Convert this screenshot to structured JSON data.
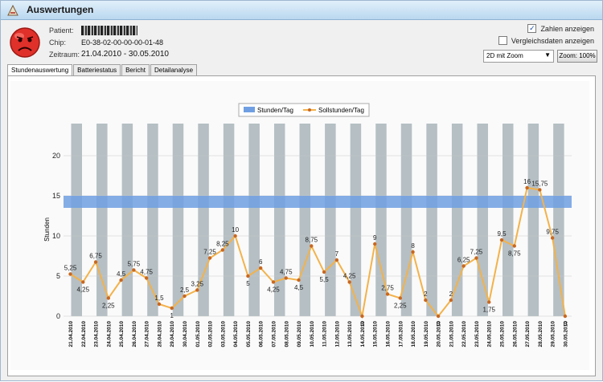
{
  "window": {
    "title": "Auswertungen"
  },
  "info": {
    "patient_label": "Patient:",
    "chip_label": "Chip:",
    "chip_value": "E0-38-02-00-00-00-01-48",
    "period_label": "Zeitraum:",
    "period_value": "21.04.2010  -  30.05.2010"
  },
  "options": {
    "show_numbers_label": "Zahlen anzeigen",
    "show_numbers_checked": true,
    "show_compare_label": "Vergleichsdaten anzeigen",
    "show_compare_checked": false,
    "view_mode": "2D mit Zoom",
    "zoom_label": "Zoom: 100%"
  },
  "tabs": [
    "Stundenauswertung",
    "Batteriestatus",
    "Bericht",
    "Detailanalyse"
  ],
  "chart_data": {
    "type": "line",
    "ylabel": "Stunden",
    "ylim": [
      0,
      25
    ],
    "yticks": [
      0,
      5,
      10,
      15,
      20
    ],
    "legend": [
      "Stunden/Tag",
      "Sollstunden/Tag"
    ],
    "target_band": [
      13.5,
      15
    ],
    "categories": [
      "21.04.2010",
      "22.04.2010",
      "23.04.2010",
      "24.04.2010",
      "25.04.2010",
      "26.04.2010",
      "27.04.2010",
      "28.04.2010",
      "29.04.2010",
      "30.04.2010",
      "01.05.2010",
      "02.05.2010",
      "03.05.2010",
      "04.05.2010",
      "05.05.2010",
      "06.05.2010",
      "07.05.2010",
      "08.05.2010",
      "09.05.2010",
      "10.05.2010",
      "11.05.2010",
      "12.05.2010",
      "13.05.2010",
      "14.05.2010",
      "15.05.2010",
      "16.05.2010",
      "17.05.2010",
      "18.05.2010",
      "19.05.2010",
      "20.05.2010",
      "21.05.2010",
      "22.05.2010",
      "23.05.2010",
      "24.05.2010",
      "25.05.2010",
      "26.05.2010",
      "27.05.2010",
      "28.05.2010",
      "29.05.2010",
      "30.05.2010"
    ],
    "values": [
      5.25,
      4.25,
      6.75,
      2.25,
      4.5,
      5.75,
      4.75,
      1.5,
      1,
      2.5,
      3.25,
      7.25,
      8.25,
      10,
      5,
      6,
      4.25,
      4.75,
      4.5,
      8.75,
      5.5,
      7,
      4.25,
      0,
      9,
      2.75,
      2.25,
      8,
      2,
      0,
      2,
      6.25,
      7.25,
      1.75,
      9.5,
      8.75,
      16,
      15.75,
      9.75,
      0
    ],
    "labels": [
      "5,25",
      "4,25",
      "6,75",
      "2,25",
      "4,5",
      "5,75",
      "4,75",
      "1,5",
      "1",
      "2,5",
      "3,25",
      "7,25",
      "8,25",
      "10",
      "5",
      "6",
      "4,25",
      "4,75",
      "4,5",
      "8,75",
      "5,5",
      "7",
      "4,25",
      "0",
      "9",
      "2,75",
      "2,25",
      "8",
      "2",
      "0",
      "2",
      "6,25",
      "7,25",
      "1,75",
      "9,5",
      "8,75",
      "16",
      "15,75",
      "9,75",
      "0"
    ],
    "label_pos": [
      "above",
      "below",
      "above",
      "below",
      "above",
      "above",
      "above",
      "above",
      "below",
      "above",
      "above",
      "above",
      "above",
      "above",
      "below",
      "above",
      "below",
      "above",
      "below",
      "above",
      "below",
      "above",
      "above",
      "below",
      "above",
      "above",
      "below",
      "above",
      "above",
      "below",
      "above",
      "above",
      "above",
      "below",
      "above",
      "below",
      "above",
      "above",
      "above",
      "below"
    ],
    "colors": {
      "line": "#f3b24a",
      "marker": "#c9671f",
      "band": "#6f9fe2",
      "stripe": "#b5bfc4",
      "grid": "#c8c8c8"
    }
  }
}
